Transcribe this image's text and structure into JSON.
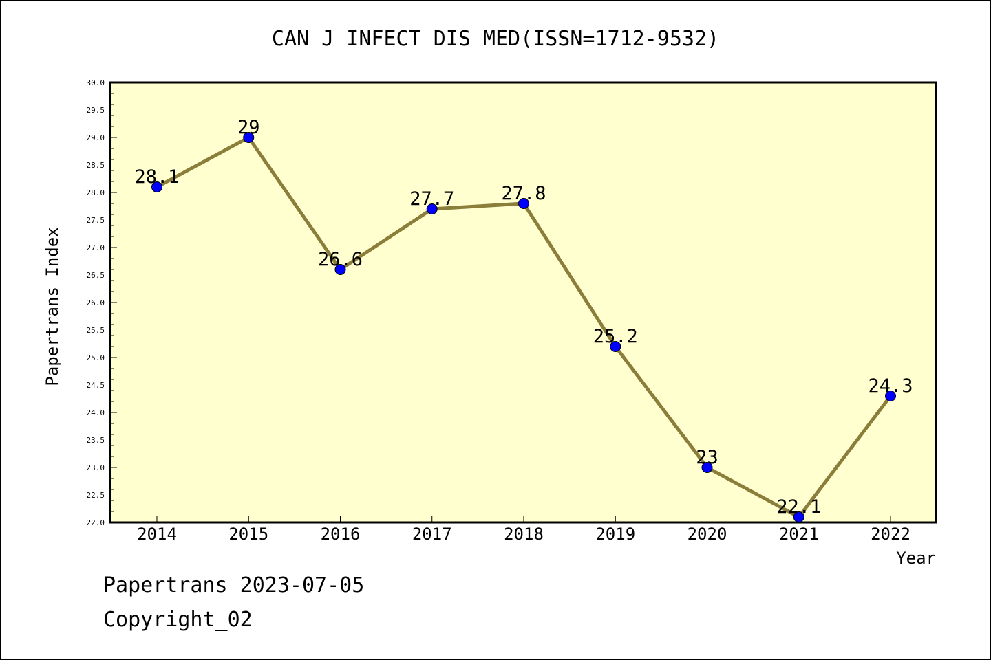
{
  "chart_data": {
    "type": "line",
    "title": "CAN J INFECT DIS MED(ISSN=1712-9532)",
    "xlabel": "Year",
    "ylabel": "Papertrans Index",
    "categories": [
      "2014",
      "2015",
      "2016",
      "2017",
      "2018",
      "2019",
      "2020",
      "2021",
      "2022"
    ],
    "values": [
      28.1,
      29,
      26.6,
      27.7,
      27.8,
      25.2,
      23,
      22.1,
      24.3
    ],
    "data_labels": [
      "28.1",
      "29",
      "26.6",
      "27.7",
      "27.8",
      "25.2",
      "23",
      "22.1",
      "24.3"
    ],
    "ylim": [
      22.0,
      30.0
    ],
    "yticks": [
      "22.0",
      "22.5",
      "23.0",
      "23.5",
      "24.0",
      "24.5",
      "25.0",
      "25.5",
      "26.0",
      "26.5",
      "27.0",
      "27.5",
      "28.0",
      "28.5",
      "29.0",
      "29.5",
      "30.0"
    ],
    "grid": false,
    "colors": {
      "plot_background": "#ffffd0",
      "line": "#8b7d3a",
      "marker": "#0000ff"
    }
  },
  "footer": {
    "line1": "Papertrans 2023-07-05",
    "line2": "Copyright_02"
  }
}
